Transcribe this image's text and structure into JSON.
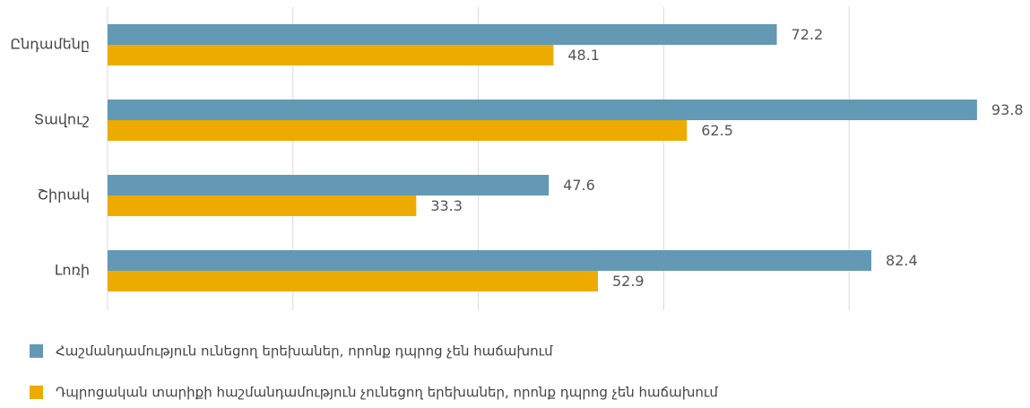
{
  "chart_data": {
    "type": "bar",
    "orientation": "horizontal",
    "categories": [
      "Ընդամենը",
      "Տավուշ",
      "Շիրակ",
      "Լոռի"
    ],
    "series": [
      {
        "name": "Հաշմանդամություն ունեցող երեխաներ, որոնք դպրոց չեն հաճախում",
        "color": "#6399b4",
        "values": [
          72.2,
          93.8,
          47.6,
          82.4
        ]
      },
      {
        "name": "Դպրոցական տարիքի հաշմանդամություն չունեցող երեխաներ, որոնք դպրոց չեն հաճախում",
        "color": "#edab00",
        "values": [
          48.1,
          62.5,
          33.3,
          52.9
        ]
      }
    ],
    "xlim": [
      0,
      100
    ],
    "xticks": [
      0,
      20,
      40,
      60,
      80
    ],
    "grid": true,
    "legend": "bottom"
  }
}
